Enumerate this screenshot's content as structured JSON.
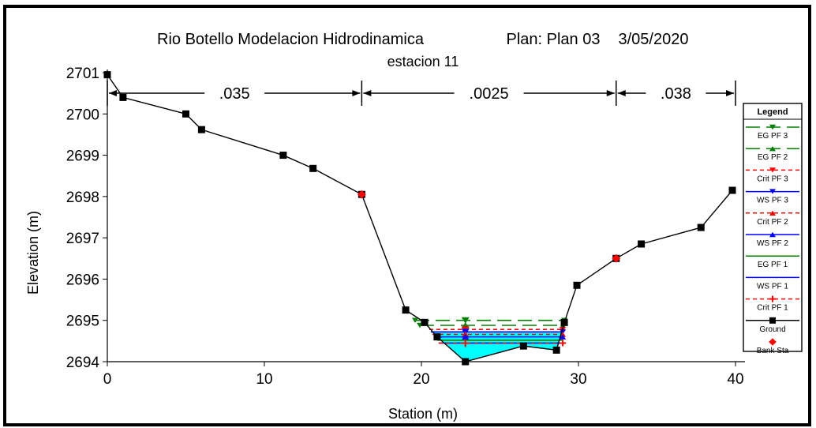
{
  "chart_data": {
    "type": "line",
    "title": "Rio Botello Modelacion Hidrodinamica",
    "plan": "Plan: Plan 03",
    "date": "3/05/2020",
    "subtitle": "estacion 11",
    "xlabel": "Station (m)",
    "ylabel": "Elevation (m)",
    "xlim": [
      0,
      40
    ],
    "ylim": [
      2694,
      2701
    ],
    "x_ticks": [
      0,
      10,
      20,
      30,
      40
    ],
    "y_ticks": [
      2694,
      2695,
      2696,
      2697,
      2698,
      2699,
      2700,
      2701
    ],
    "grid": false,
    "legend_position": "right",
    "manning": [
      {
        "label": ".035",
        "from": 0,
        "to": 16.2
      },
      {
        "label": ".0025",
        "from": 16.2,
        "to": 32.4
      },
      {
        "label": ".038",
        "from": 32.4,
        "to": 40
      }
    ],
    "ground": {
      "name": "Ground",
      "x": [
        0,
        1,
        5,
        6,
        11.2,
        13.1,
        16.2,
        19,
        20.2,
        21,
        22.8,
        26.5,
        28.6,
        29.1,
        29.9,
        32.4,
        34,
        37.8,
        39.8
      ],
      "y": [
        2700.95,
        2700.4,
        2700.0,
        2699.62,
        2699.0,
        2698.68,
        2698.05,
        2695.25,
        2694.95,
        2694.6,
        2694.0,
        2694.38,
        2694.28,
        2694.95,
        2695.85,
        2696.5,
        2696.85,
        2697.25,
        2698.15
      ]
    },
    "bank_stations": {
      "name": "Bank Sta",
      "x": [
        16.2,
        32.4
      ],
      "y": [
        2698.05,
        2696.5
      ]
    },
    "water_surfaces": [
      {
        "name": "EG PF 3",
        "y": 2695.0,
        "x_from": 19.6,
        "x_to": 29.1,
        "color": "#008000",
        "style": "long-dash",
        "marker_x": 22.8
      },
      {
        "name": "EG PF 2",
        "y": 2694.88,
        "x_from": 19.9,
        "x_to": 29.0,
        "color": "#008000",
        "style": "long-dash",
        "marker_x": 22.8
      },
      {
        "name": "Crit PF 3",
        "y": 2694.78,
        "x_from": 20.5,
        "x_to": 29.0,
        "color": "#ff0000",
        "style": "short-dash",
        "marker_x": 22.8
      },
      {
        "name": "WS PF 3",
        "y": 2694.72,
        "x_from": 20.6,
        "x_to": 29.0,
        "color": "#0000ff",
        "style": "solid",
        "marker_x": 22.8
      },
      {
        "name": "Crit PF 2",
        "y": 2694.66,
        "x_from": 20.7,
        "x_to": 29.0,
        "color": "#ff0000",
        "style": "short-dash",
        "marker_x": 22.8
      },
      {
        "name": "WS PF 2",
        "y": 2694.6,
        "x_from": 20.8,
        "x_to": 29.0,
        "color": "#0000ff",
        "style": "solid",
        "marker_x": 22.8
      },
      {
        "name": "EG PF 1",
        "y": 2694.52,
        "x_from": 21.0,
        "x_to": 29.0,
        "color": "#008000",
        "style": "solid",
        "marker_x": null
      },
      {
        "name": "WS PF 1",
        "y": 2694.45,
        "x_from": 21.1,
        "x_to": 29.0,
        "color": "#0000ff",
        "style": "solid",
        "marker_x": null
      },
      {
        "name": "Crit PF 1",
        "y": 2694.45,
        "x_from": 21.1,
        "x_to": 29.0,
        "color": "#ff0000",
        "style": "short-dash",
        "marker_x": 22.8
      }
    ],
    "water_fill": {
      "y": 2694.72,
      "x_from": 20.6,
      "x_to": 29.0,
      "color": "#00ffff"
    },
    "legend": {
      "title": "Legend",
      "entries": [
        {
          "label": "EG PF 3",
          "color": "#008000",
          "style": "long-dash",
          "marker": "triangle-down"
        },
        {
          "label": "EG PF 2",
          "color": "#008000",
          "style": "long-dash",
          "marker": "triangle-up"
        },
        {
          "label": "Crit PF 3",
          "color": "#ff0000",
          "style": "short-dash",
          "marker": "triangle-down"
        },
        {
          "label": "WS PF 3",
          "color": "#0000ff",
          "style": "solid",
          "marker": "triangle-down"
        },
        {
          "label": "Crit PF 2",
          "color": "#ff0000",
          "style": "short-dash",
          "marker": "triangle-up"
        },
        {
          "label": "WS PF 2",
          "color": "#0000ff",
          "style": "solid",
          "marker": "triangle-up"
        },
        {
          "label": "EG PF 1",
          "color": "#008000",
          "style": "solid",
          "marker": "none"
        },
        {
          "label": "WS PF 1",
          "color": "#0000ff",
          "style": "solid",
          "marker": "none"
        },
        {
          "label": "Crit PF 1",
          "color": "#ff0000",
          "style": "short-dash",
          "marker": "plus"
        },
        {
          "label": "Ground",
          "color": "#000000",
          "style": "solid",
          "marker": "square"
        },
        {
          "label": "Bank Sta",
          "color": "#ff0000",
          "style": "none",
          "marker": "diamond"
        }
      ]
    }
  }
}
